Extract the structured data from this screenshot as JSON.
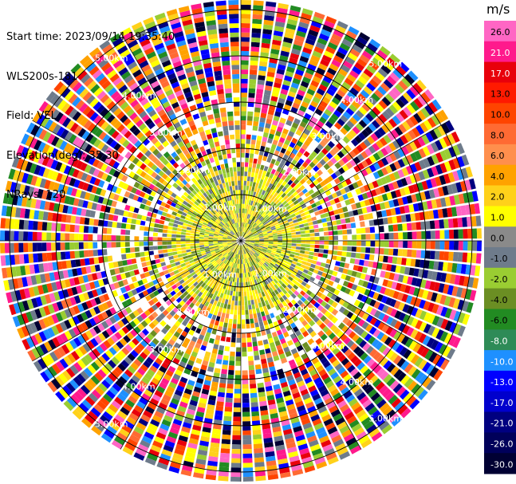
{
  "header": {
    "start_time": "Start time: 2023/09/14 19:35:40",
    "instrument": "WLS200s-181",
    "field": "Field: VEL",
    "elevation": "Elevation(deg): 35.30",
    "nrays": "NRays: 120"
  },
  "range_rings": {
    "labels": [
      "1.00km",
      "2.00km",
      "3.00km",
      "4.00km",
      "5.00km"
    ],
    "km": [
      1,
      2,
      3,
      4,
      5
    ]
  },
  "colorbar": {
    "unit": "m/s",
    "ticks": [
      "26.0",
      "21.0",
      "17.0",
      "13.0",
      "10.0",
      "8.0",
      "6.0",
      "4.0",
      "2.0",
      "1.0",
      "0.0",
      "-1.0",
      "-2.0",
      "-4.0",
      "-6.0",
      "-8.0",
      "-10.0",
      "-13.0",
      "-17.0",
      "-21.0",
      "-26.0",
      "-30.0"
    ],
    "colors": [
      "#ff66c4",
      "#ff1a8c",
      "#e8000b",
      "#ff1a00",
      "#ff4400",
      "#ff6a33",
      "#ff8f4d",
      "#ffa200",
      "#ffd11a",
      "#ffff00",
      "#8a8a8a",
      "#6e7b8b",
      "#9acd32",
      "#6b8e23",
      "#228b22",
      "#2e8b57",
      "#1e90ff",
      "#0000ff",
      "#0000cd",
      "#000080",
      "#00005a",
      "#000033"
    ]
  }
}
